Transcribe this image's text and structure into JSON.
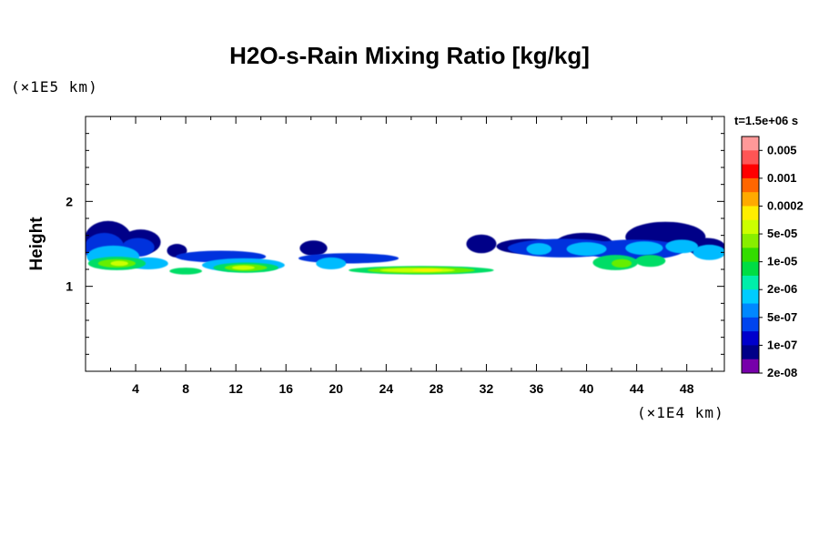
{
  "chart_data": {
    "type": "heatmap",
    "title": "H2O-s-Rain Mixing Ratio [kg/kg]",
    "xlabel": "",
    "ylabel": "Height",
    "x_unit": "(×1E4 km)",
    "y_unit": "(×1E5 km)",
    "time_label": "t=1.5e+06 s",
    "xlim": [
      0,
      51
    ],
    "ylim": [
      0,
      3
    ],
    "x_ticks": [
      4,
      8,
      12,
      16,
      20,
      24,
      28,
      32,
      36,
      40,
      44,
      48
    ],
    "x_tick_labels": [
      "4",
      "8",
      "12",
      "16",
      "20",
      "24",
      "28",
      "32",
      "36",
      "40",
      "44",
      "48"
    ],
    "y_ticks": [
      1,
      2
    ],
    "y_tick_labels": [
      "1",
      "2"
    ],
    "colorbar": {
      "labels": [
        "0.005",
        "0.001",
        "0.0002",
        "5e-05",
        "1e-05",
        "2e-06",
        "5e-07",
        "1e-07",
        "2e-08"
      ],
      "colors": [
        "#ff9999",
        "#ff5555",
        "#ff0000",
        "#ff6600",
        "#ffaa00",
        "#ffee00",
        "#ccff00",
        "#88ee00",
        "#33dd00",
        "#00dd44",
        "#00eeaa",
        "#00ccff",
        "#0088ff",
        "#0044ee",
        "#0000cc",
        "#000088",
        "#7700aa"
      ]
    },
    "series": [
      {
        "name": "level-2e-08",
        "color": "#000088",
        "blobs": [
          [
            1.8,
            1.55,
            1.9,
            0.22
          ],
          [
            4.4,
            1.52,
            1.6,
            0.15
          ],
          [
            7.3,
            1.42,
            0.8,
            0.08
          ],
          [
            18.2,
            1.45,
            1.1,
            0.09
          ],
          [
            31.6,
            1.5,
            1.2,
            0.11
          ],
          [
            35.4,
            1.47,
            2.6,
            0.09
          ],
          [
            39.8,
            1.5,
            2.3,
            0.13
          ],
          [
            46.3,
            1.58,
            3.2,
            0.18
          ],
          [
            49.6,
            1.46,
            1.5,
            0.11
          ]
        ]
      },
      {
        "name": "level-1e-07",
        "color": "#0033dd",
        "blobs": [
          [
            1.5,
            1.45,
            1.6,
            0.18
          ],
          [
            4.2,
            1.46,
            1.3,
            0.11
          ],
          [
            10.8,
            1.35,
            3.6,
            0.07
          ],
          [
            21.0,
            1.33,
            4.0,
            0.06
          ],
          [
            38.2,
            1.45,
            4.5,
            0.11
          ],
          [
            43.8,
            1.43,
            4.0,
            0.12
          ]
        ]
      },
      {
        "name": "level-5e-07",
        "color": "#00bbff",
        "blobs": [
          [
            2.2,
            1.35,
            2.1,
            0.13
          ],
          [
            5.0,
            1.27,
            1.6,
            0.07
          ],
          [
            12.6,
            1.25,
            3.3,
            0.08
          ],
          [
            19.6,
            1.27,
            1.2,
            0.07
          ],
          [
            36.2,
            1.44,
            1.0,
            0.07
          ],
          [
            40.0,
            1.44,
            1.6,
            0.08
          ],
          [
            44.6,
            1.45,
            1.5,
            0.08
          ],
          [
            47.6,
            1.47,
            1.3,
            0.08
          ],
          [
            49.8,
            1.4,
            1.3,
            0.09
          ]
        ]
      },
      {
        "name": "level-2e-06",
        "color": "#00dd66",
        "blobs": [
          [
            2.5,
            1.27,
            2.3,
            0.08
          ],
          [
            12.8,
            1.22,
            2.6,
            0.06
          ],
          [
            26.8,
            1.19,
            5.8,
            0.05
          ],
          [
            42.3,
            1.28,
            1.8,
            0.09
          ],
          [
            45.1,
            1.3,
            1.2,
            0.07
          ],
          [
            8.0,
            1.18,
            1.3,
            0.04
          ]
        ]
      },
      {
        "name": "level-1e-05",
        "color": "#66ee00",
        "blobs": [
          [
            2.5,
            1.27,
            1.5,
            0.05
          ],
          [
            12.8,
            1.22,
            1.7,
            0.04
          ],
          [
            26.8,
            1.19,
            4.3,
            0.04
          ],
          [
            42.8,
            1.27,
            0.8,
            0.05
          ]
        ]
      },
      {
        "name": "level-5e-05",
        "color": "#ccff00",
        "blobs": [
          [
            2.7,
            1.27,
            0.7,
            0.03
          ],
          [
            12.6,
            1.22,
            0.9,
            0.025
          ],
          [
            26.5,
            1.19,
            3.0,
            0.025
          ]
        ]
      },
      {
        "name": "level-0.0002",
        "color": "#ffee00",
        "blobs": [
          [
            27.3,
            1.19,
            1.2,
            0.015
          ]
        ]
      }
    ]
  }
}
